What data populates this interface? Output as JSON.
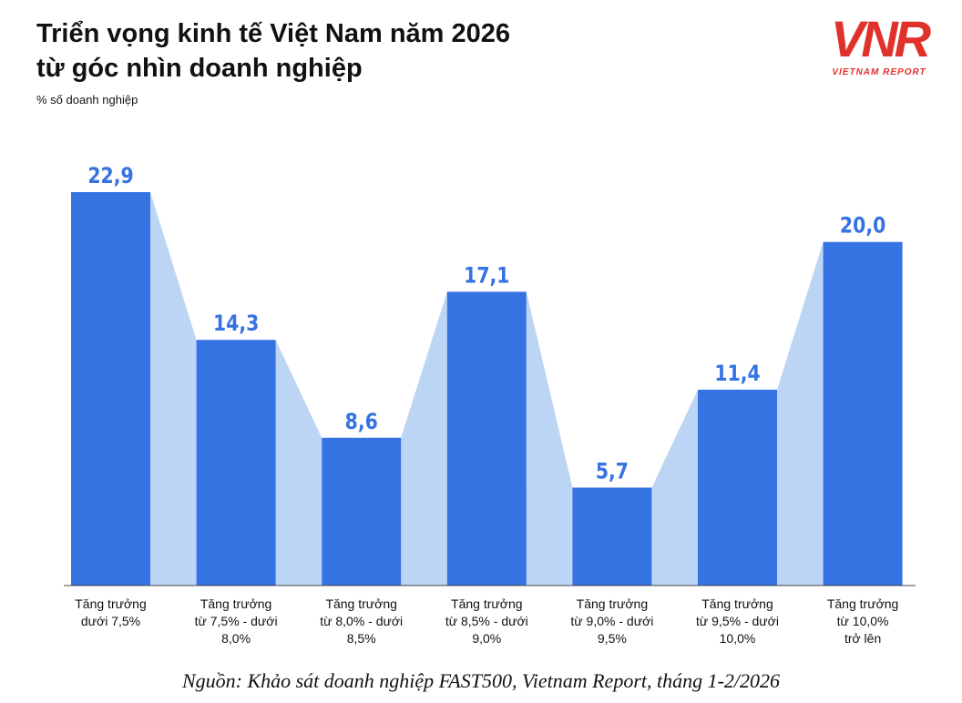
{
  "brand": {
    "mark": "VNR",
    "name": "VIETNAM REPORT"
  },
  "chart_data": {
    "type": "bar",
    "title": "Triển vọng kinh tế Việt Nam năm 2026\ntừ góc nhìn doanh nghiệp",
    "subtitle": "% số doanh nghiệp",
    "categories": [
      "Tăng trưởng\ndưới 7,5%",
      "Tăng trưởng\ntừ 7,5% - dưới\n8,0%",
      "Tăng trưởng\ntừ 8,0% - dưới\n8,5%",
      "Tăng trưởng\ntừ 8,5% - dưới\n9,0%",
      "Tăng trưởng\ntừ 9,0% - dưới\n9,5%",
      "Tăng trưởng\ntừ 9,5% - dưới\n10,0%",
      "Tăng trưởng\ntừ 10,0%\ntrở lên"
    ],
    "values": [
      22.9,
      14.3,
      8.6,
      17.1,
      5.7,
      11.4,
      20.0
    ],
    "value_labels": [
      "22,9",
      "14,3",
      "8,6",
      "17,1",
      "5,7",
      "11,4",
      "20,0"
    ],
    "color": "#3572e2",
    "connector_color": "#bdd5f5",
    "source": "Nguồn: Khảo sát doanh nghiệp FAST500, Vietnam Report, tháng 1-2/2026"
  }
}
